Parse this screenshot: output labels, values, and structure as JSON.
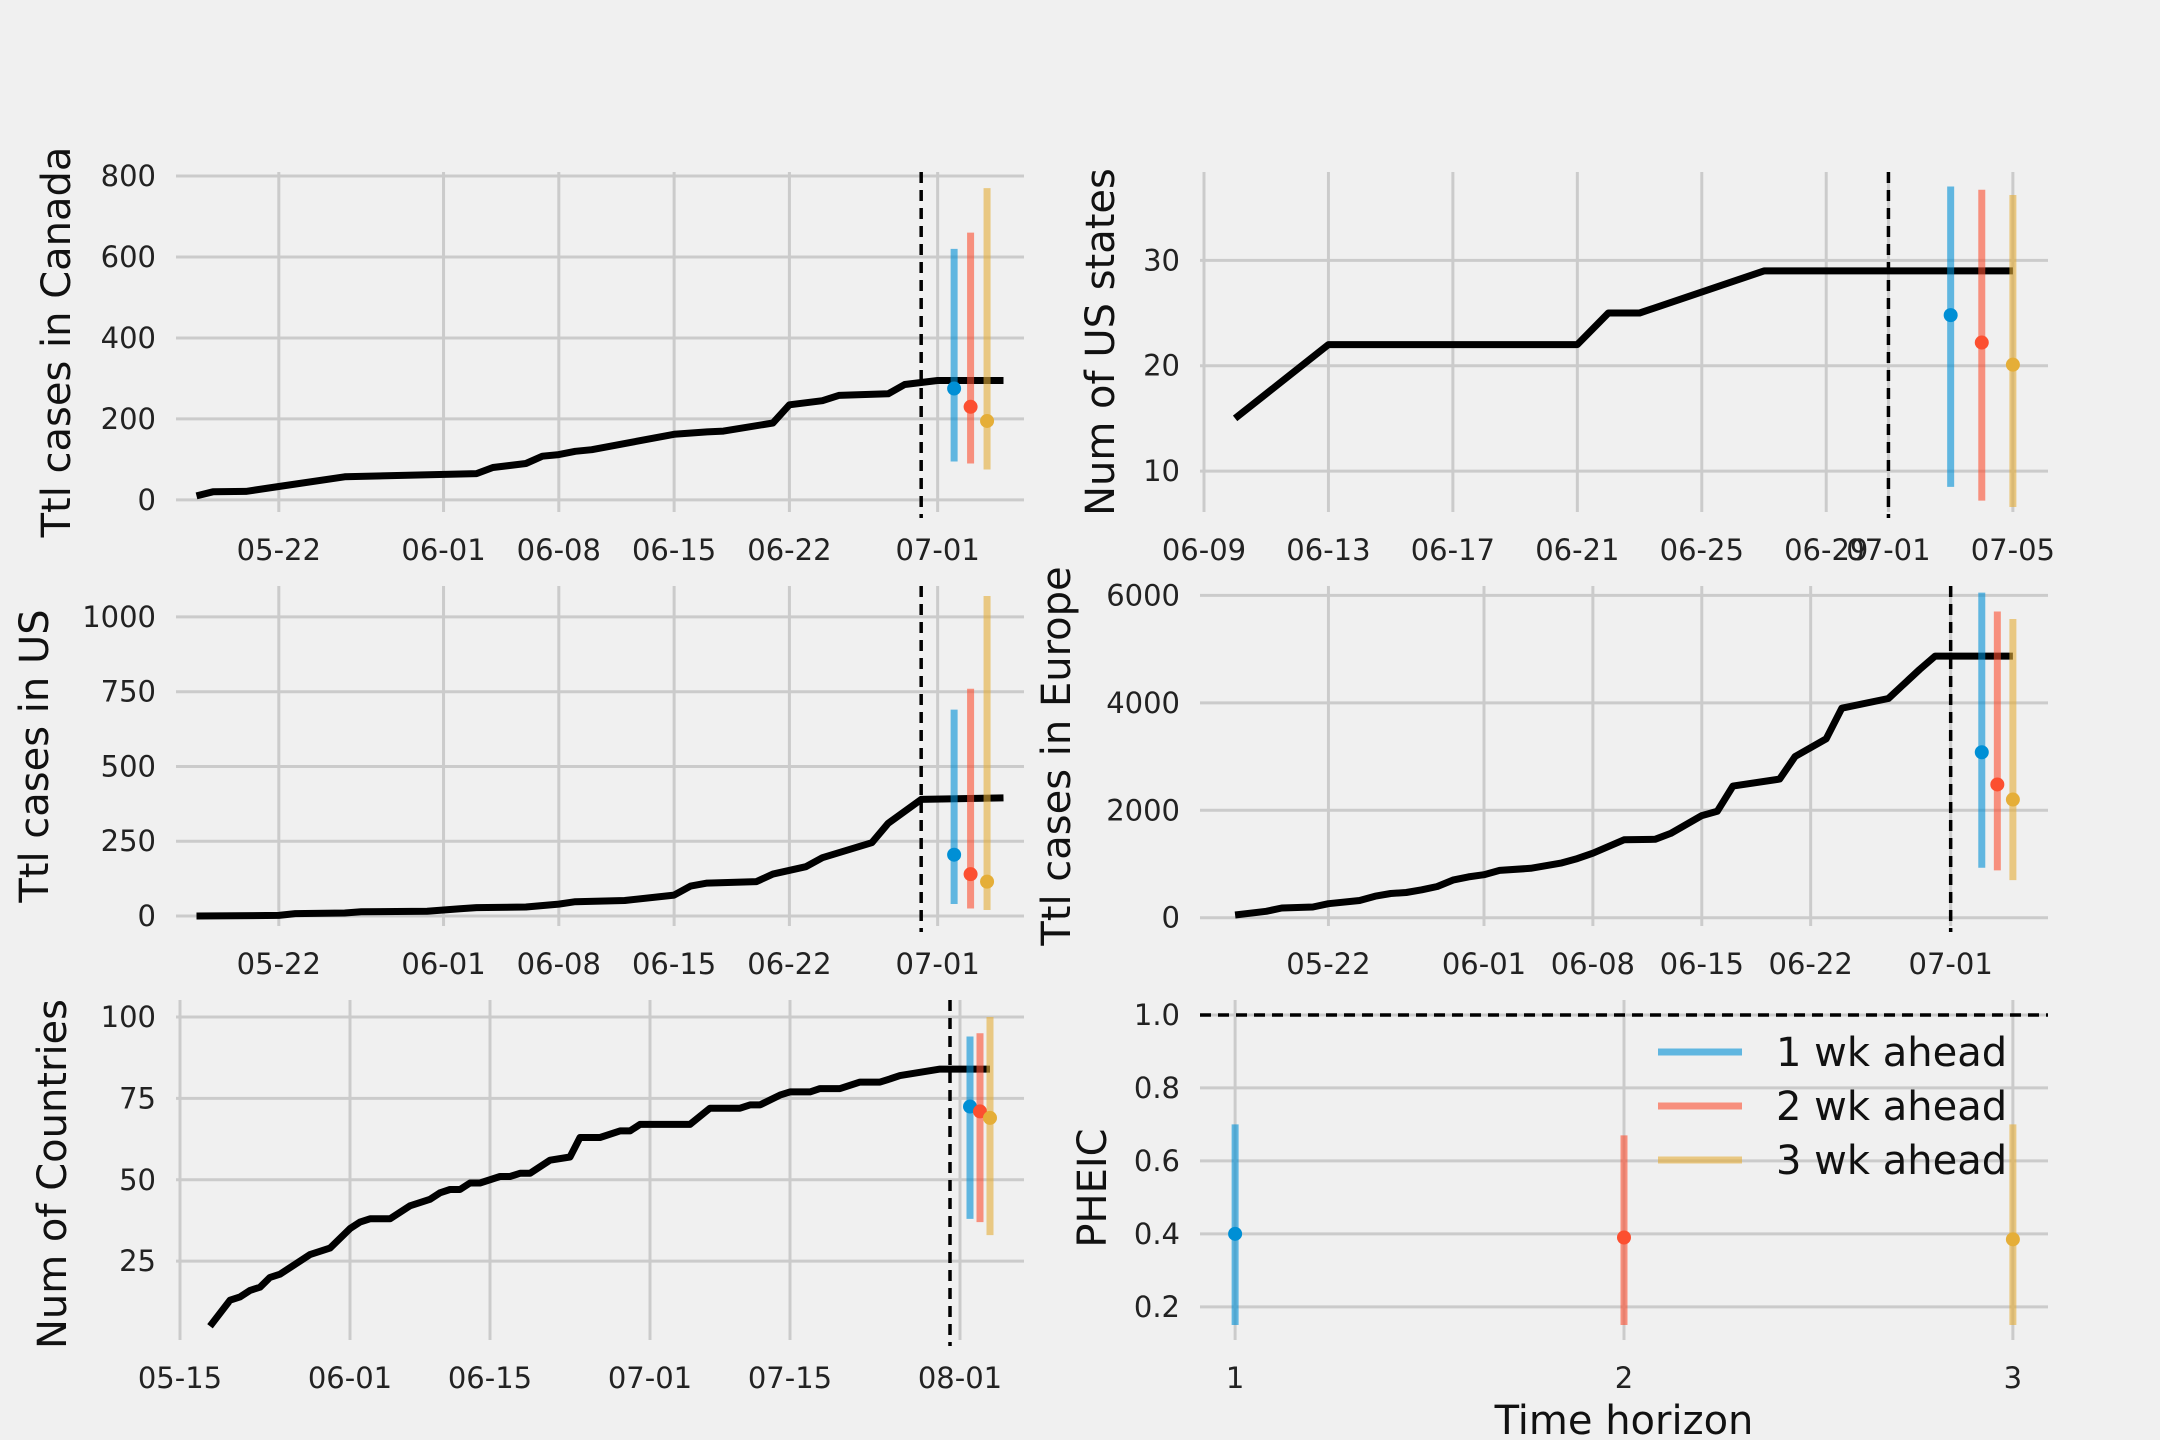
{
  "colors": {
    "background": "#f0f0f0",
    "grid": "#cbcbcb",
    "observed": "#000000",
    "wk1": "#008fd5",
    "wk2": "#fc4f30",
    "wk3": "#e5ae38"
  },
  "chart_data": [
    {
      "id": "canada",
      "type": "line",
      "ylabel": "Ttl cases in Canada",
      "x_type": "date",
      "xlim": [
        "2020-05-16",
        "2020-07-06"
      ],
      "ylim": [
        -20,
        800
      ],
      "xticks": [
        {
          "label": "05-22",
          "date": "2020-05-22"
        },
        {
          "label": "06-01",
          "date": "2020-06-01"
        },
        {
          "label": "06-08",
          "date": "2020-06-08"
        },
        {
          "label": "06-15",
          "date": "2020-06-15"
        },
        {
          "label": "06-22",
          "date": "2020-06-22"
        },
        {
          "label": "07-01",
          "date": "2020-07-01"
        }
      ],
      "yticks": [
        0,
        200,
        400,
        600,
        800
      ],
      "vline": "2020-06-30",
      "observed": [
        [
          "2020-05-17",
          10
        ],
        [
          "2020-05-18",
          20
        ],
        [
          "2020-05-20",
          21
        ],
        [
          "2020-05-22",
          33
        ],
        [
          "2020-05-26",
          57
        ],
        [
          "2020-06-03",
          65
        ],
        [
          "2020-06-04",
          80
        ],
        [
          "2020-06-06",
          90
        ],
        [
          "2020-06-07",
          108
        ],
        [
          "2020-06-08",
          112
        ],
        [
          "2020-06-09",
          120
        ],
        [
          "2020-06-10",
          124
        ],
        [
          "2020-06-15",
          162
        ],
        [
          "2020-06-17",
          168
        ],
        [
          "2020-06-18",
          170
        ],
        [
          "2020-06-21",
          190
        ],
        [
          "2020-06-22",
          235
        ],
        [
          "2020-06-24",
          245
        ],
        [
          "2020-06-25",
          258
        ],
        [
          "2020-06-28",
          262
        ],
        [
          "2020-06-29",
          285
        ],
        [
          "2020-07-01",
          295
        ],
        [
          "2020-07-05",
          295
        ]
      ],
      "forecasts": [
        {
          "series": "1 wk ahead",
          "x": "2020-07-02",
          "median": 275,
          "lower": 95,
          "upper": 620
        },
        {
          "series": "2 wk ahead",
          "x": "2020-07-03",
          "median": 230,
          "lower": 90,
          "upper": 660
        },
        {
          "series": "3 wk ahead",
          "x": "2020-07-04",
          "median": 195,
          "lower": 75,
          "upper": 770
        }
      ]
    },
    {
      "id": "us_states",
      "type": "line",
      "ylabel": "Num of US states",
      "x_type": "date",
      "xlim": [
        "2020-06-09",
        "2020-07-06"
      ],
      "ylim": [
        6.5,
        38
      ],
      "xticks": [
        {
          "label": "06-09",
          "date": "2020-06-09"
        },
        {
          "label": "06-13",
          "date": "2020-06-13"
        },
        {
          "label": "06-17",
          "date": "2020-06-17"
        },
        {
          "label": "06-21",
          "date": "2020-06-21"
        },
        {
          "label": "06-25",
          "date": "2020-06-25"
        },
        {
          "label": "06-29",
          "date": "2020-06-29"
        },
        {
          "label": "07-01",
          "date": "2020-07-01"
        },
        {
          "label": "07-05",
          "date": "2020-07-05"
        }
      ],
      "yticks": [
        10,
        20,
        30
      ],
      "vline": "2020-07-01",
      "observed": [
        [
          "2020-06-10",
          15
        ],
        [
          "2020-06-13",
          22
        ],
        [
          "2020-06-21",
          22
        ],
        [
          "2020-06-22",
          25
        ],
        [
          "2020-06-23",
          25
        ],
        [
          "2020-06-27",
          29
        ],
        [
          "2020-07-05",
          29
        ]
      ],
      "forecasts": [
        {
          "series": "1 wk ahead",
          "x": "2020-07-03",
          "median": 24.8,
          "lower": 8.5,
          "upper": 37
        },
        {
          "series": "2 wk ahead",
          "x": "2020-07-04",
          "median": 22.2,
          "lower": 7.2,
          "upper": 36.7
        },
        {
          "series": "3 wk ahead",
          "x": "2020-07-05",
          "median": 20.1,
          "lower": 6.6,
          "upper": 36.2
        }
      ]
    },
    {
      "id": "us",
      "type": "line",
      "ylabel": "Ttl cases in US",
      "x_type": "date",
      "xlim": [
        "2020-05-16",
        "2020-07-06"
      ],
      "ylim": [
        -20,
        1090
      ],
      "xticks": [
        {
          "label": "05-22",
          "date": "2020-05-22"
        },
        {
          "label": "06-01",
          "date": "2020-06-01"
        },
        {
          "label": "06-08",
          "date": "2020-06-08"
        },
        {
          "label": "06-15",
          "date": "2020-06-15"
        },
        {
          "label": "06-22",
          "date": "2020-06-22"
        },
        {
          "label": "07-01",
          "date": "2020-07-01"
        }
      ],
      "yticks": [
        0,
        250,
        500,
        750,
        1000
      ],
      "vline": "2020-06-30",
      "observed": [
        [
          "2020-05-17",
          0
        ],
        [
          "2020-05-22",
          2
        ],
        [
          "2020-05-23",
          8
        ],
        [
          "2020-05-26",
          10
        ],
        [
          "2020-05-27",
          14
        ],
        [
          "2020-05-31",
          16
        ],
        [
          "2020-06-01",
          20
        ],
        [
          "2020-06-02",
          24
        ],
        [
          "2020-06-03",
          28
        ],
        [
          "2020-06-06",
          30
        ],
        [
          "2020-06-08",
          40
        ],
        [
          "2020-06-09",
          48
        ],
        [
          "2020-06-12",
          52
        ],
        [
          "2020-06-15",
          70
        ],
        [
          "2020-06-16",
          100
        ],
        [
          "2020-06-17",
          110
        ],
        [
          "2020-06-20",
          115
        ],
        [
          "2020-06-21",
          140
        ],
        [
          "2020-06-23",
          165
        ],
        [
          "2020-06-24",
          195
        ],
        [
          "2020-06-27",
          245
        ],
        [
          "2020-06-28",
          310
        ],
        [
          "2020-06-30",
          390
        ],
        [
          "2020-07-05",
          395
        ]
      ],
      "forecasts": [
        {
          "series": "1 wk ahead",
          "x": "2020-07-02",
          "median": 205,
          "lower": 40,
          "upper": 690
        },
        {
          "series": "2 wk ahead",
          "x": "2020-07-03",
          "median": 140,
          "lower": 25,
          "upper": 760
        },
        {
          "series": "3 wk ahead",
          "x": "2020-07-04",
          "median": 115,
          "lower": 20,
          "upper": 1070
        }
      ]
    },
    {
      "id": "europe",
      "type": "line",
      "ylabel": "Ttl cases in Europe",
      "x_type": "date",
      "xlim": [
        "2020-05-14",
        "2020-07-07"
      ],
      "ylim": [
        -80,
        6100
      ],
      "xticks": [
        {
          "label": "05-22",
          "date": "2020-05-22"
        },
        {
          "label": "06-01",
          "date": "2020-06-01"
        },
        {
          "label": "06-08",
          "date": "2020-06-08"
        },
        {
          "label": "06-15",
          "date": "2020-06-15"
        },
        {
          "label": "06-22",
          "date": "2020-06-22"
        },
        {
          "label": "07-01",
          "date": "2020-07-01"
        }
      ],
      "yticks": [
        0,
        2000,
        4000,
        6000
      ],
      "vline": "2020-07-01",
      "observed": [
        [
          "2020-05-16",
          50
        ],
        [
          "2020-05-18",
          120
        ],
        [
          "2020-05-19",
          180
        ],
        [
          "2020-05-21",
          200
        ],
        [
          "2020-05-22",
          260
        ],
        [
          "2020-05-24",
          320
        ],
        [
          "2020-05-25",
          400
        ],
        [
          "2020-05-26",
          450
        ],
        [
          "2020-05-27",
          470
        ],
        [
          "2020-05-28",
          520
        ],
        [
          "2020-05-29",
          580
        ],
        [
          "2020-05-30",
          700
        ],
        [
          "2020-05-31",
          760
        ],
        [
          "2020-06-01",
          800
        ],
        [
          "2020-06-02",
          880
        ],
        [
          "2020-06-04",
          920
        ],
        [
          "2020-06-06",
          1020
        ],
        [
          "2020-06-07",
          1100
        ],
        [
          "2020-06-08",
          1200
        ],
        [
          "2020-06-10",
          1450
        ],
        [
          "2020-06-12",
          1460
        ],
        [
          "2020-06-13",
          1570
        ],
        [
          "2020-06-15",
          1900
        ],
        [
          "2020-06-16",
          1980
        ],
        [
          "2020-06-17",
          2450
        ],
        [
          "2020-06-20",
          2580
        ],
        [
          "2020-06-21",
          3000
        ],
        [
          "2020-06-23",
          3330
        ],
        [
          "2020-06-24",
          3900
        ],
        [
          "2020-06-27",
          4080
        ],
        [
          "2020-06-29",
          4620
        ],
        [
          "2020-06-30",
          4870
        ],
        [
          "2020-07-05",
          4870
        ]
      ],
      "forecasts": [
        {
          "series": "1 wk ahead",
          "x": "2020-07-03",
          "median": 3080,
          "lower": 930,
          "upper": 6050
        },
        {
          "series": "2 wk ahead",
          "x": "2020-07-04",
          "median": 2480,
          "lower": 880,
          "upper": 5700
        },
        {
          "series": "3 wk ahead",
          "x": "2020-07-05",
          "median": 2200,
          "lower": 700,
          "upper": 5560
        }
      ]
    },
    {
      "id": "countries",
      "type": "line",
      "ylabel": "Num of Countries",
      "x_type": "date",
      "xlim": [
        "2020-05-15",
        "2020-08-07"
      ],
      "ylim": [
        2,
        104
      ],
      "xticks": [
        {
          "label": "05-15",
          "date": "2020-05-15"
        },
        {
          "label": "06-01",
          "date": "2020-06-01"
        },
        {
          "label": "06-15",
          "date": "2020-06-15"
        },
        {
          "label": "07-01",
          "date": "2020-07-01"
        },
        {
          "label": "07-15",
          "date": "2020-07-15"
        },
        {
          "label": "08-01",
          "date": "2020-08-01"
        }
      ],
      "yticks": [
        25,
        50,
        75,
        100
      ],
      "vline": "2020-07-31",
      "observed": [
        [
          "2020-05-18",
          5
        ],
        [
          "2020-05-20",
          13
        ],
        [
          "2020-05-21",
          14
        ],
        [
          "2020-05-22",
          16
        ],
        [
          "2020-05-23",
          17
        ],
        [
          "2020-05-24",
          20
        ],
        [
          "2020-05-25",
          21
        ],
        [
          "2020-05-28",
          27
        ],
        [
          "2020-05-30",
          29
        ],
        [
          "2020-05-31",
          32
        ],
        [
          "2020-06-01",
          35
        ],
        [
          "2020-06-02",
          37
        ],
        [
          "2020-06-03",
          38
        ],
        [
          "2020-06-05",
          38
        ],
        [
          "2020-06-07",
          42
        ],
        [
          "2020-06-09",
          44
        ],
        [
          "2020-06-10",
          46
        ],
        [
          "2020-06-11",
          47
        ],
        [
          "2020-06-12",
          47
        ],
        [
          "2020-06-13",
          49
        ],
        [
          "2020-06-14",
          49
        ],
        [
          "2020-06-16",
          51
        ],
        [
          "2020-06-17",
          51
        ],
        [
          "2020-06-18",
          52
        ],
        [
          "2020-06-19",
          52
        ],
        [
          "2020-06-21",
          56
        ],
        [
          "2020-06-23",
          57
        ],
        [
          "2020-06-24",
          63
        ],
        [
          "2020-06-26",
          63
        ],
        [
          "2020-06-28",
          65
        ],
        [
          "2020-06-29",
          65
        ],
        [
          "2020-06-30",
          67
        ],
        [
          "2020-07-05",
          67
        ],
        [
          "2020-07-07",
          72
        ],
        [
          "2020-07-10",
          72
        ],
        [
          "2020-07-11",
          73
        ],
        [
          "2020-07-12",
          73
        ],
        [
          "2020-07-14",
          76
        ],
        [
          "2020-07-15",
          77
        ],
        [
          "2020-07-17",
          77
        ],
        [
          "2020-07-18",
          78
        ],
        [
          "2020-07-20",
          78
        ],
        [
          "2020-07-22",
          80
        ],
        [
          "2020-07-24",
          80
        ],
        [
          "2020-07-25",
          81
        ],
        [
          "2020-07-26",
          82
        ],
        [
          "2020-07-30",
          84
        ],
        [
          "2020-08-04",
          84
        ]
      ],
      "forecasts": [
        {
          "series": "1 wk ahead",
          "x": "2020-08-02",
          "median": 72.5,
          "lower": 38,
          "upper": 94
        },
        {
          "series": "2 wk ahead",
          "x": "2020-08-03",
          "median": 71,
          "lower": 37,
          "upper": 95
        },
        {
          "series": "3 wk ahead",
          "x": "2020-08-04",
          "median": 69,
          "lower": 33,
          "upper": 100
        }
      ]
    },
    {
      "id": "pheic",
      "type": "scatter",
      "ylabel": "PHEIC",
      "xlabel": "Time horizon",
      "x_type": "numeric",
      "xlim": [
        0.92,
        3.08
      ],
      "ylim": [
        0.12,
        1.03
      ],
      "xticks": [
        {
          "label": "1",
          "value": 1
        },
        {
          "label": "2",
          "value": 2
        },
        {
          "label": "3",
          "value": 3
        }
      ],
      "yticks": [
        0.2,
        0.4,
        0.6,
        0.8,
        1.0
      ],
      "ytick_labels": [
        "0.2",
        "0.4",
        "0.6",
        "0.8",
        "1.0"
      ],
      "hline": 1.0,
      "forecasts": [
        {
          "series": "1 wk ahead",
          "x": 1,
          "median": 0.4,
          "lower": 0.15,
          "upper": 0.7
        },
        {
          "series": "2 wk ahead",
          "x": 2,
          "median": 0.39,
          "lower": 0.15,
          "upper": 0.67
        },
        {
          "series": "3 wk ahead",
          "x": 3,
          "median": 0.385,
          "lower": 0.15,
          "upper": 0.7
        }
      ],
      "legend": {
        "placement": "upper-right",
        "entries": [
          "1 wk ahead",
          "2 wk ahead",
          "3 wk ahead"
        ]
      }
    }
  ]
}
